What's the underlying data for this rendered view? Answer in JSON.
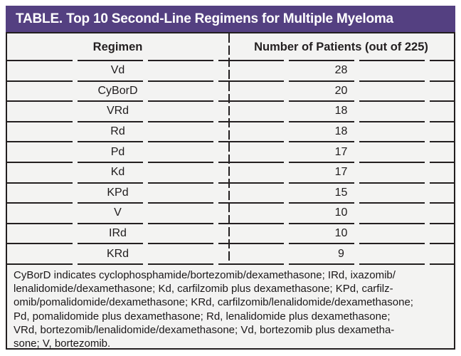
{
  "title_bar": {
    "title": "TABLE. Top 10 Second-Line Regimens for Multiple Myeloma"
  },
  "table": {
    "header": {
      "regimen": "Regimen",
      "patients": "Number of Patients (out of 225)"
    },
    "rows": [
      {
        "regimen": "Vd",
        "patients": "28"
      },
      {
        "regimen": "CyBorD",
        "patients": "20"
      },
      {
        "regimen": "VRd",
        "patients": "18"
      },
      {
        "regimen": "Rd",
        "patients": "18"
      },
      {
        "regimen": "Pd",
        "patients": "17"
      },
      {
        "regimen": "Kd",
        "patients": "17"
      },
      {
        "regimen": "KPd",
        "patients": "15"
      },
      {
        "regimen": "V",
        "patients": "10"
      },
      {
        "regimen": "IRd",
        "patients": "10"
      },
      {
        "regimen": "KRd",
        "patients": "9"
      }
    ]
  },
  "footnote": {
    "lines": [
      "CyBorD indicates cyclophosphamide/bortezomib/dexamethasone; IRd, ixazomib/",
      "lenalidomide/dexamethasone; Kd, carfilzomib plus dexamethasone; KPd, carfilz-",
      "omib/pomalidomide/dexamethasone; KRd, carfilzomib/lenalidomide/dexamethasone;",
      "Pd, pomalidomide plus dexamethasone; Rd, lenalidomide plus dexamethasone;",
      "VRd, bortezomib/lenalidomide/dexamethasone; Vd, bortezomib plus dexametha-",
      "sone; V, bortezomib."
    ],
    "full_text": "CyBorD indicates cyclophosphamide/bortezomib/dexamethasone; IRd, ixazomib/lenalidomide/dexamethasone; Kd, carfilzomib plus dexamethasone; KPd, carfilzomib/pomalidomide/dexamethasone; KRd, carfilzomib/lenalidomide/dexamethasone; Pd, pomalidomide plus dexamethasone; Rd, lenalidomide plus dexamethasone; VRd, bortezomib/lenalidomide/dexamethasone; Vd, bortezomib plus dexamethasone; V, bortezomib."
  },
  "colors": {
    "title_bar_purple": "#544081",
    "title_text": "#ffffff",
    "body_background": "#f3f3f2",
    "rule_color": "#231f20",
    "cell_text": "#1f1c1d"
  },
  "chart_data": {
    "type": "table",
    "title": "TABLE. Top 10 Second-Line Regimens for Multiple Myeloma",
    "columns": [
      "Regimen",
      "Number of Patients (out of 225)"
    ],
    "rows": [
      [
        "Vd",
        28
      ],
      [
        "CyBorD",
        20
      ],
      [
        "VRd",
        18
      ],
      [
        "Rd",
        18
      ],
      [
        "Pd",
        17
      ],
      [
        "Kd",
        17
      ],
      [
        "KPd",
        15
      ],
      [
        "V",
        10
      ],
      [
        "IRd",
        10
      ],
      [
        "KRd",
        9
      ]
    ],
    "total_patients": 225
  }
}
